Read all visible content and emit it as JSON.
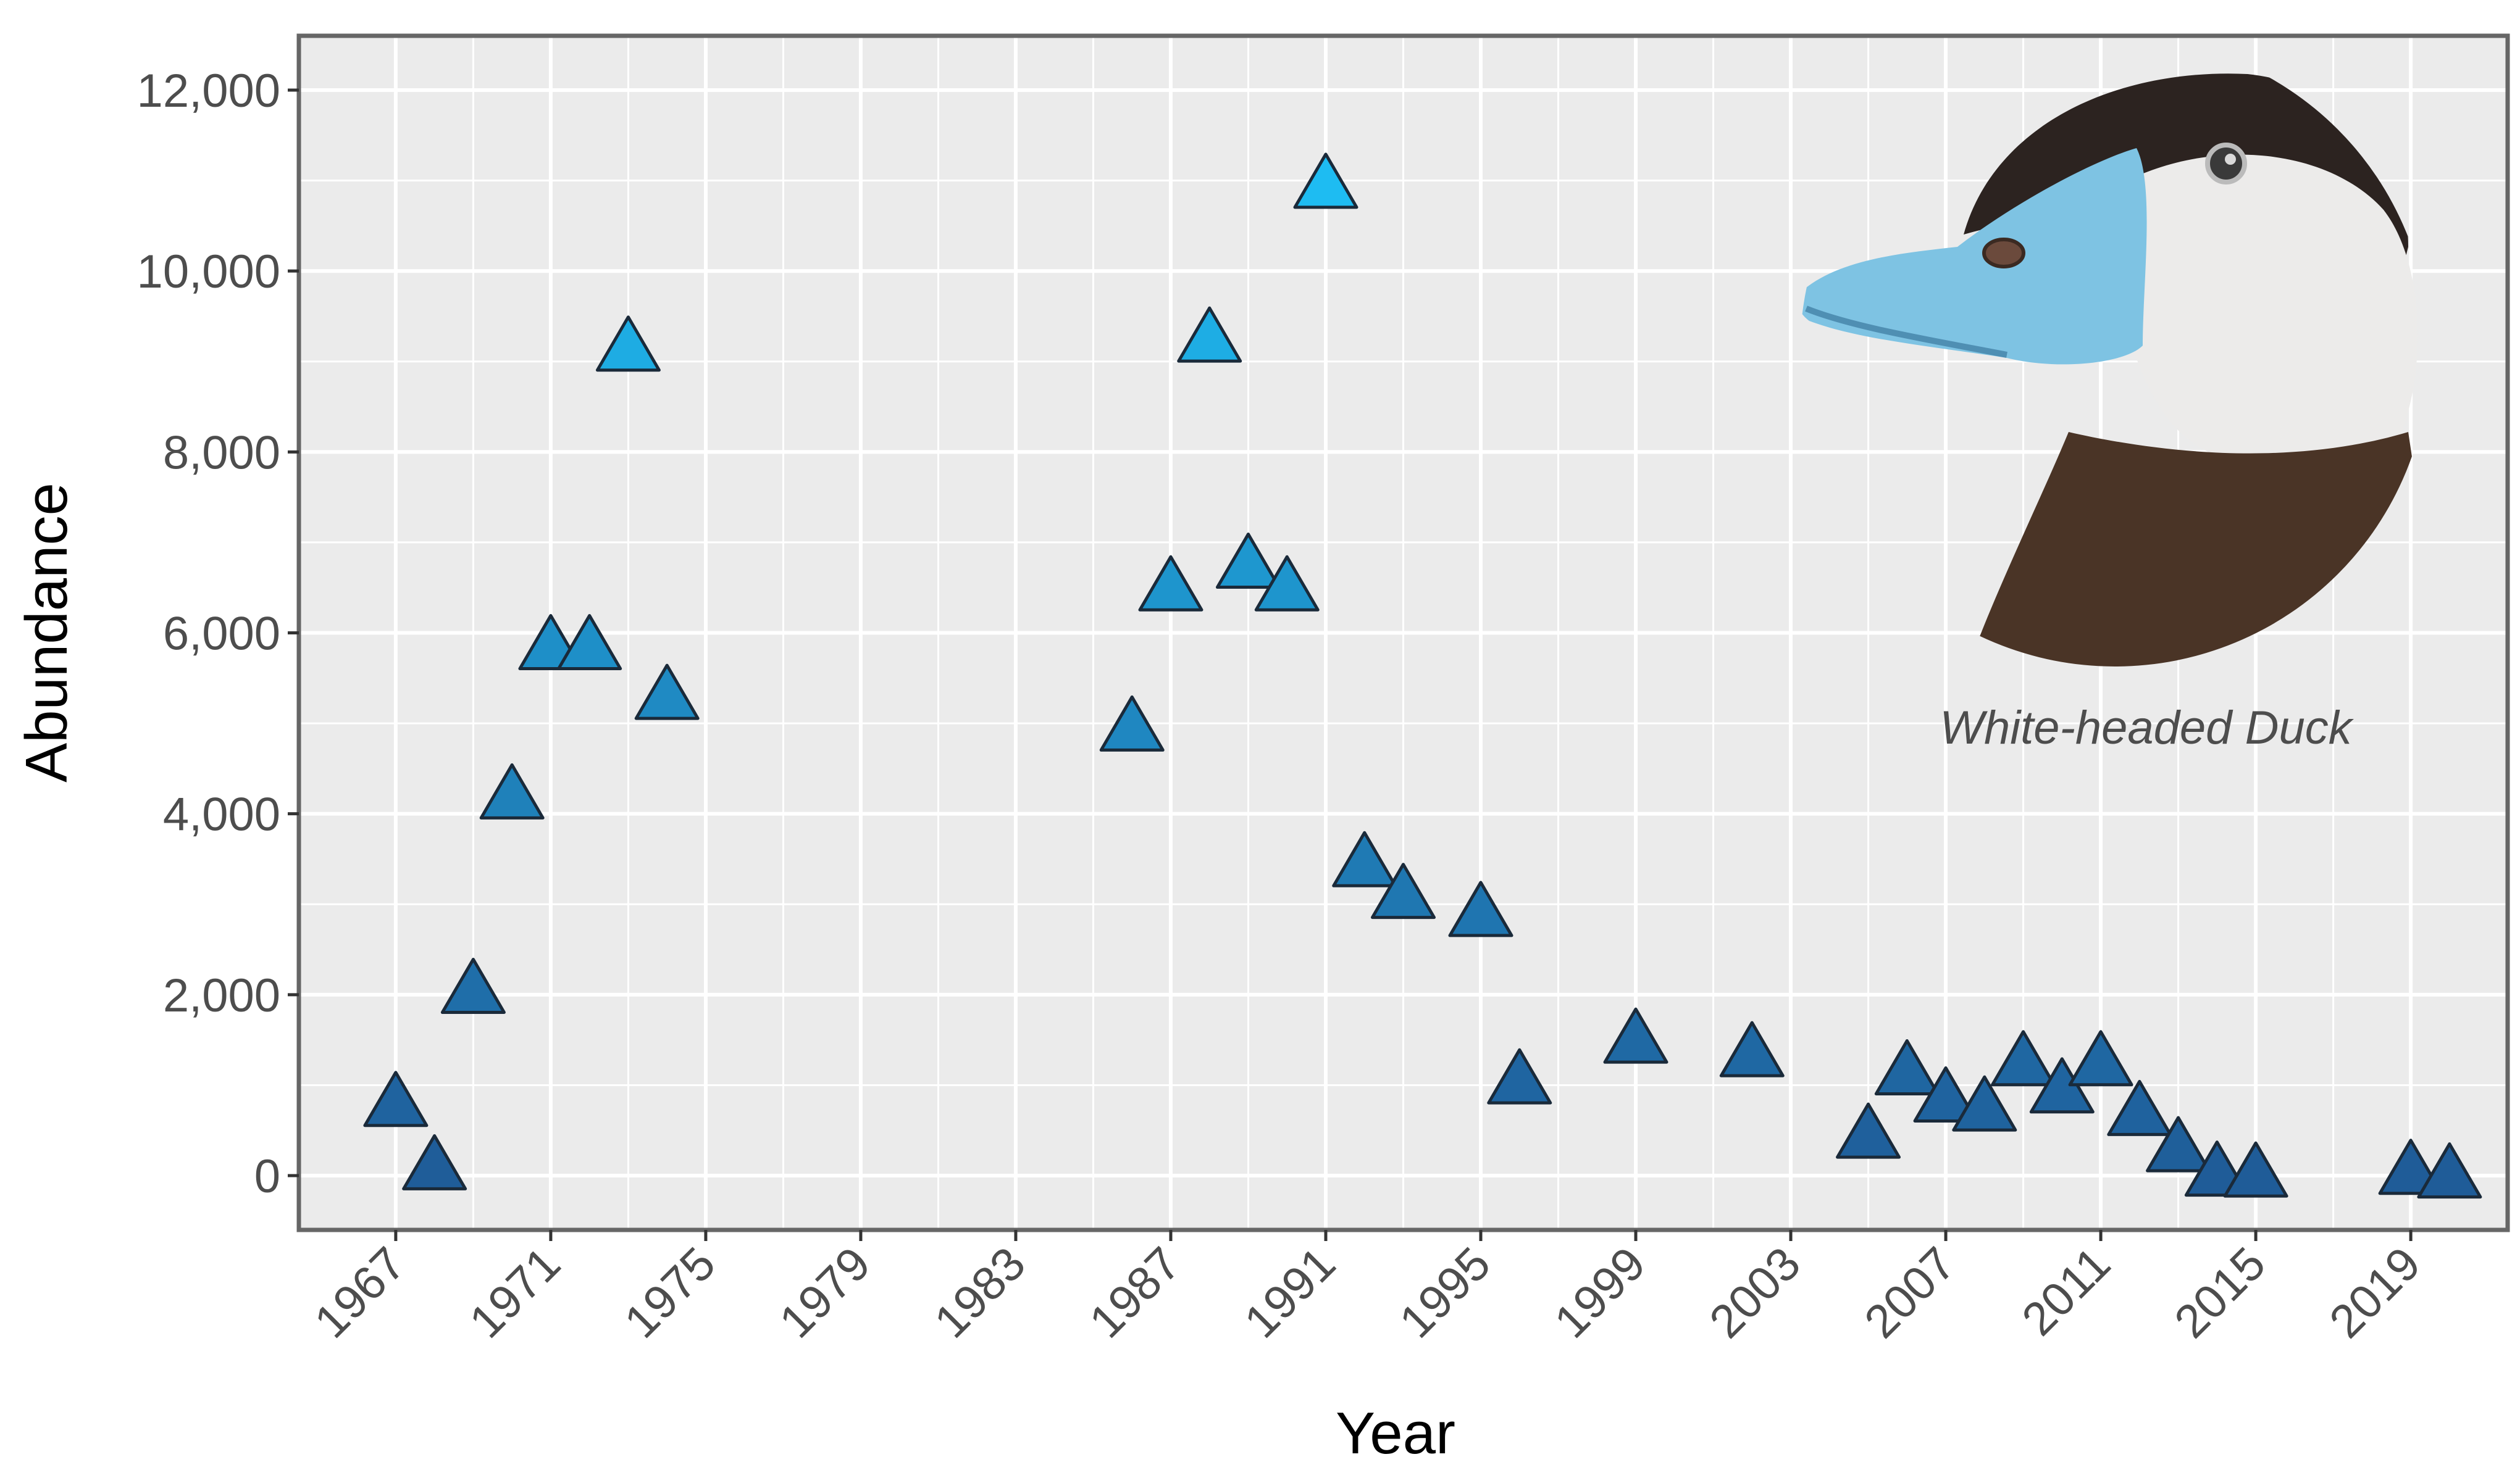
{
  "chart_data": {
    "type": "scatter",
    "xlabel": "Year",
    "ylabel": "Abundance",
    "xlim": [
      1964.5,
      2021.5
    ],
    "ylim": [
      -600,
      12600
    ],
    "x_ticks": [
      1967,
      1971,
      1975,
      1979,
      1983,
      1987,
      1991,
      1995,
      1999,
      2003,
      2007,
      2011,
      2015,
      2019
    ],
    "y_ticks": [
      0,
      2000,
      4000,
      6000,
      8000,
      10000,
      12000
    ],
    "y_tick_labels": [
      "0",
      "2,000",
      "4,000",
      "6,000",
      "8,000",
      "10,000",
      "12,000"
    ],
    "grid": true,
    "legend": "none",
    "annotation": "White-headed Duck",
    "marker": "triangle",
    "color_scale": {
      "low": "#1f5c98",
      "high": "#1ebcf2",
      "min_value": 0,
      "max_value": 11000
    },
    "points": [
      {
        "x": 1967,
        "y": 800
      },
      {
        "x": 1968,
        "y": 100
      },
      {
        "x": 1969,
        "y": 2050
      },
      {
        "x": 1970,
        "y": 4200
      },
      {
        "x": 1971,
        "y": 5850
      },
      {
        "x": 1972,
        "y": 5850
      },
      {
        "x": 1973,
        "y": 9150
      },
      {
        "x": 1974,
        "y": 5300
      },
      {
        "x": 1986,
        "y": 4950
      },
      {
        "x": 1987,
        "y": 6500
      },
      {
        "x": 1988,
        "y": 9250
      },
      {
        "x": 1989,
        "y": 6750
      },
      {
        "x": 1990,
        "y": 6500
      },
      {
        "x": 1991,
        "y": 10950
      },
      {
        "x": 1992,
        "y": 3450
      },
      {
        "x": 1993,
        "y": 3100
      },
      {
        "x": 1995,
        "y": 2900
      },
      {
        "x": 1996,
        "y": 1050
      },
      {
        "x": 1999,
        "y": 1500
      },
      {
        "x": 2002,
        "y": 1350
      },
      {
        "x": 2005,
        "y": 450
      },
      {
        "x": 2006,
        "y": 1150
      },
      {
        "x": 2007,
        "y": 850
      },
      {
        "x": 2008,
        "y": 750
      },
      {
        "x": 2009,
        "y": 1250
      },
      {
        "x": 2010,
        "y": 950
      },
      {
        "x": 2011,
        "y": 1250
      },
      {
        "x": 2012,
        "y": 700
      },
      {
        "x": 2013,
        "y": 300
      },
      {
        "x": 2014,
        "y": 30
      },
      {
        "x": 2015,
        "y": 20
      },
      {
        "x": 2019,
        "y": 50
      },
      {
        "x": 2020,
        "y": 10
      }
    ]
  }
}
